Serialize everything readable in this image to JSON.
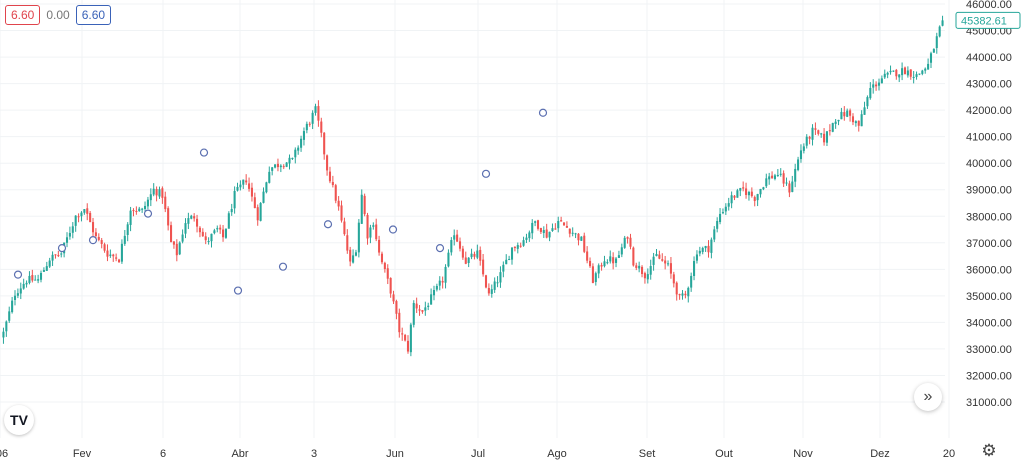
{
  "legend": {
    "open_value": "6.60",
    "change_value": "0.00",
    "close_value": "6.60"
  },
  "logo_text": "TV",
  "icons": {
    "scroll": "double-chevron-right-icon",
    "settings": "gear-icon",
    "logo": "tradingview-logo-icon"
  },
  "colors": {
    "up": "#26a69a",
    "down": "#ef5350",
    "marker": "#5b6fb0",
    "price_label": "#26a69a"
  },
  "chart_data": {
    "type": "candlestick",
    "title": "",
    "xlabel": "",
    "ylabel": "",
    "ylim": [
      31000,
      46000
    ],
    "grid": true,
    "y_ticks": [
      "31000.00",
      "32000.00",
      "33000.00",
      "34000.00",
      "35000.00",
      "36000.00",
      "37000.00",
      "38000.00",
      "39000.00",
      "40000.00",
      "41000.00",
      "42000.00",
      "43000.00",
      "44000.00",
      "45000.00",
      "46000.00"
    ],
    "x_tick_labels": [
      "06",
      "Fev",
      "6",
      "Abr",
      "3",
      "Jun",
      "Jul",
      "Ago",
      "Set",
      "Out",
      "Nov",
      "Dez",
      "20"
    ],
    "last_price": "45382.61",
    "close_anchors": [
      [
        0,
        33600
      ],
      [
        4,
        35100
      ],
      [
        8,
        35600
      ],
      [
        12,
        35600
      ],
      [
        16,
        36400
      ],
      [
        20,
        36600
      ],
      [
        25,
        38000
      ],
      [
        28,
        38300
      ],
      [
        32,
        37200
      ],
      [
        36,
        36600
      ],
      [
        40,
        36400
      ],
      [
        44,
        38300
      ],
      [
        48,
        38200
      ],
      [
        52,
        39000
      ],
      [
        55,
        38800
      ],
      [
        58,
        37000
      ],
      [
        60,
        36600
      ],
      [
        63,
        37800
      ],
      [
        66,
        38000
      ],
      [
        70,
        37000
      ],
      [
        74,
        37500
      ],
      [
        76,
        37200
      ],
      [
        80,
        38800
      ],
      [
        84,
        39400
      ],
      [
        88,
        38000
      ],
      [
        92,
        39800
      ],
      [
        96,
        40000
      ],
      [
        100,
        40100
      ],
      [
        104,
        41200
      ],
      [
        108,
        42000
      ],
      [
        110,
        41000
      ],
      [
        112,
        39800
      ],
      [
        116,
        38300
      ],
      [
        120,
        36200
      ],
      [
        122,
        36800
      ],
      [
        124,
        38800
      ],
      [
        126,
        37300
      ],
      [
        128,
        37800
      ],
      [
        130,
        36600
      ],
      [
        134,
        35200
      ],
      [
        137,
        33700
      ],
      [
        140,
        33000
      ],
      [
        142,
        34700
      ],
      [
        145,
        34400
      ],
      [
        148,
        34900
      ],
      [
        152,
        35600
      ],
      [
        156,
        37400
      ],
      [
        160,
        36300
      ],
      [
        164,
        36600
      ],
      [
        168,
        35000
      ],
      [
        172,
        35800
      ],
      [
        176,
        36800
      ],
      [
        180,
        37100
      ],
      [
        184,
        37800
      ],
      [
        188,
        37300
      ],
      [
        192,
        37800
      ],
      [
        196,
        37500
      ],
      [
        200,
        37100
      ],
      [
        204,
        35600
      ],
      [
        208,
        36400
      ],
      [
        212,
        36300
      ],
      [
        216,
        37300
      ],
      [
        218,
        36300
      ],
      [
        222,
        35800
      ],
      [
        226,
        36500
      ],
      [
        230,
        36100
      ],
      [
        234,
        34900
      ],
      [
        236,
        35000
      ],
      [
        240,
        36700
      ],
      [
        244,
        36800
      ],
      [
        248,
        38100
      ],
      [
        252,
        38700
      ],
      [
        256,
        39000
      ],
      [
        260,
        38700
      ],
      [
        264,
        39400
      ],
      [
        268,
        39600
      ],
      [
        272,
        39000
      ],
      [
        276,
        40500
      ],
      [
        280,
        41200
      ],
      [
        284,
        40900
      ],
      [
        288,
        41700
      ],
      [
        292,
        41900
      ],
      [
        296,
        41400
      ],
      [
        300,
        42800
      ],
      [
        304,
        43200
      ],
      [
        308,
        43400
      ],
      [
        312,
        43500
      ],
      [
        316,
        43300
      ],
      [
        320,
        43700
      ],
      [
        323,
        44700
      ],
      [
        325,
        45382.61
      ]
    ],
    "markers_y": [
      [
        18,
        35800
      ],
      [
        62,
        36800
      ],
      [
        93,
        37100
      ],
      [
        148,
        38100
      ],
      [
        204,
        40400
      ],
      [
        238,
        35200
      ],
      [
        283,
        36100
      ],
      [
        328,
        37700
      ],
      [
        393,
        37500
      ],
      [
        440,
        36800
      ],
      [
        486,
        39600
      ],
      [
        543,
        41900
      ]
    ]
  }
}
